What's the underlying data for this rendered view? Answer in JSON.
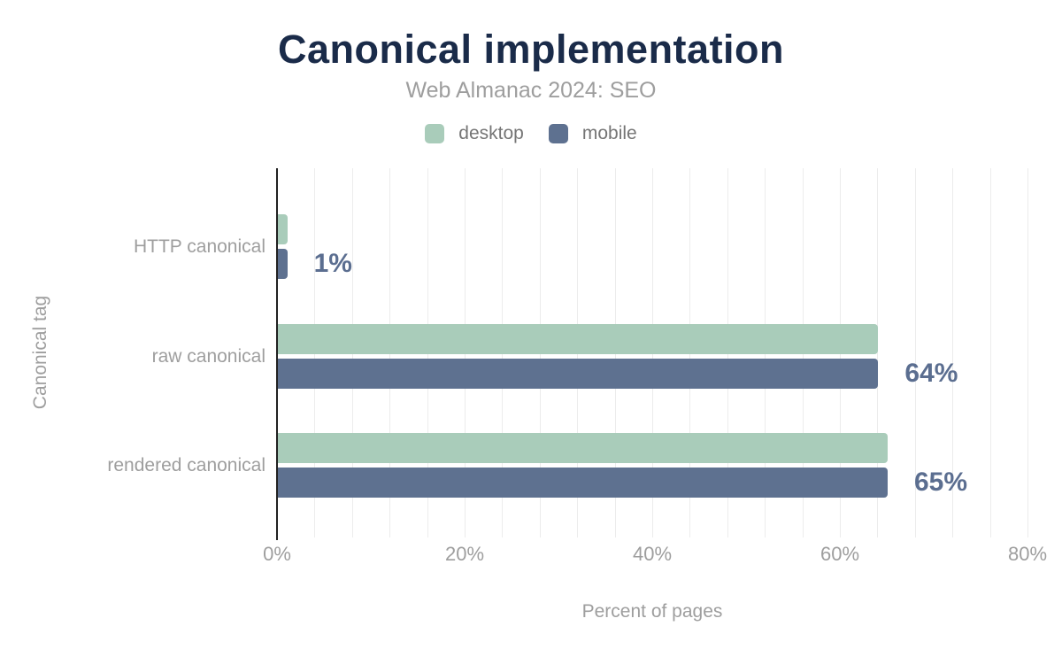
{
  "chart_data": {
    "type": "bar",
    "orientation": "horizontal",
    "title": "Canonical implementation",
    "subtitle": "Web Almanac 2024: SEO",
    "xlabel": "Percent of pages",
    "ylabel": "Canonical tag",
    "categories": [
      "HTTP canonical",
      "raw canonical",
      "rendered canonical"
    ],
    "series": [
      {
        "name": "desktop",
        "color": "#a9ccba",
        "values": [
          1,
          64,
          65
        ]
      },
      {
        "name": "mobile",
        "color": "#5e7190",
        "values": [
          1,
          64,
          65
        ]
      }
    ],
    "value_labels": [
      "1%",
      "64%",
      "65%"
    ],
    "value_label_anchor_series": "mobile",
    "x_ticks": [
      {
        "value": 0,
        "label": "0%"
      },
      {
        "value": 20,
        "label": "20%"
      },
      {
        "value": 40,
        "label": "40%"
      },
      {
        "value": 60,
        "label": "60%"
      },
      {
        "value": 80,
        "label": "80%"
      }
    ],
    "xlim": [
      0,
      82
    ],
    "grid": {
      "show": true,
      "direction": "vertical",
      "minor_step_percent": 4
    },
    "legend_position": "top-center"
  },
  "colors": {
    "background": "#ffffff",
    "title_text": "#1a2b49",
    "subtitle_text": "#9e9e9e",
    "axis_text": "#9e9e9e",
    "legend_text": "#757575",
    "value_label_text": "#5b6e90",
    "axis_line": "#212121",
    "gridline": "#ececec"
  }
}
